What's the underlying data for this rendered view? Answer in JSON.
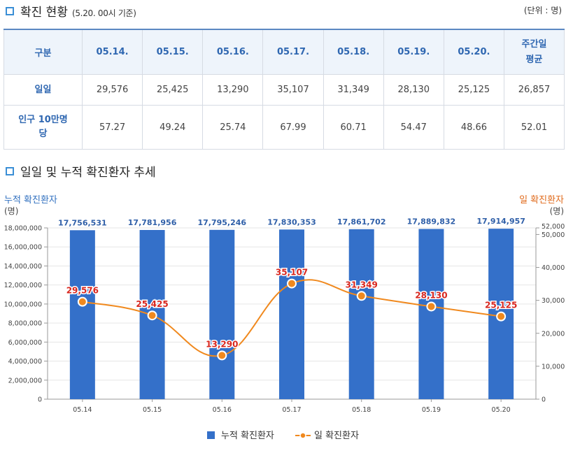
{
  "header": {
    "title": "확진 현황",
    "subtitle": "(5.20. 00시 기준)",
    "unit": "(단위 : 명)"
  },
  "table": {
    "columns": [
      "구분",
      "05.14.",
      "05.15.",
      "05.16.",
      "05.17.",
      "05.18.",
      "05.19.",
      "05.20.",
      "주간일 평균"
    ],
    "rows": [
      {
        "label": "일일",
        "values": [
          "29,576",
          "25,425",
          "13,290",
          "35,107",
          "31,349",
          "28,130",
          "25,125",
          "26,857"
        ]
      },
      {
        "label": "인구 10만명당",
        "values": [
          "57.27",
          "49.24",
          "25.74",
          "67.99",
          "60.71",
          "54.47",
          "48.66",
          "52.01"
        ]
      }
    ]
  },
  "chart_section": {
    "title": "일일 및 누적 확진환자 추세"
  },
  "chart_data": {
    "type": "bar",
    "categories": [
      "05.14",
      "05.15",
      "05.16",
      "05.17",
      "05.18",
      "05.19",
      "05.20"
    ],
    "series": [
      {
        "name": "누적 확진환자",
        "type": "bar",
        "axis": "left",
        "color": "#3470c9",
        "values": [
          17756531,
          17781956,
          17795246,
          17830353,
          17861702,
          17889832,
          17914957
        ],
        "labels": [
          "17,756,531",
          "17,781,956",
          "17,795,246",
          "17,830,353",
          "17,861,702",
          "17,889,832",
          "17,914,957"
        ]
      },
      {
        "name": "일 확진환자",
        "type": "line",
        "axis": "right",
        "color": "#f0891e",
        "values": [
          29576,
          25425,
          13290,
          35107,
          31349,
          28130,
          25125
        ],
        "labels": [
          "29,576",
          "25,425",
          "13,290",
          "35,107",
          "31,349",
          "28,130",
          "25,125"
        ]
      }
    ],
    "left_axis": {
      "title": "누적 확진환자",
      "unit": "(명)",
      "range": [
        0,
        18000000
      ],
      "ticks": [
        0,
        2000000,
        4000000,
        6000000,
        8000000,
        10000000,
        12000000,
        14000000,
        16000000,
        18000000
      ],
      "tick_labels": [
        "0",
        "2,000,000",
        "4,000,000",
        "6,000,000",
        "8,000,000",
        "10,000,000",
        "12,000,000",
        "14,000,000",
        "16,000,000",
        "18,000,000"
      ]
    },
    "right_axis": {
      "title": "일 확진환자",
      "unit": "(명)",
      "range": [
        0,
        52000
      ],
      "ticks": [
        0,
        10000,
        20000,
        30000,
        40000,
        50000,
        52000
      ],
      "tick_labels": [
        "0",
        "10,000",
        "20,000",
        "30,000",
        "40,000",
        "50,000",
        "52,000"
      ]
    },
    "legend": [
      "누적 확진환자",
      "일 확진환자"
    ],
    "legend_position": "bottom-center"
  }
}
